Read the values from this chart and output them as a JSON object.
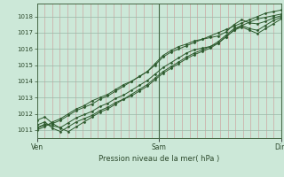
{
  "background_color": "#cce8d8",
  "plot_bg_color": "#cce8d8",
  "grid_color_v": "#cc8888",
  "grid_color_h": "#99b8a8",
  "line_color": "#2d5a2d",
  "ylim": [
    1010.5,
    1018.8
  ],
  "yticks": [
    1011,
    1012,
    1013,
    1014,
    1015,
    1016,
    1017,
    1018
  ],
  "xlabel": "Pression niveau de la mer( hPa )",
  "xtick_labels": [
    "Ven",
    "Sam",
    "Dim"
  ],
  "xtick_positions": [
    0,
    48,
    96
  ],
  "total_hours": 96,
  "series": [
    [
      1011.0,
      1011.2,
      1011.5,
      1011.7,
      1012.0,
      1012.3,
      1012.5,
      1012.8,
      1013.0,
      1013.2,
      1013.5,
      1013.8,
      1014.0,
      1014.3,
      1014.6,
      1015.0,
      1015.5,
      1015.8,
      1016.0,
      1016.2,
      1016.4,
      1016.6,
      1016.8,
      1017.0,
      1017.2,
      1017.4,
      1017.6,
      1017.8,
      1018.0,
      1018.2,
      1018.3,
      1018.4
    ],
    [
      1011.1,
      1011.3,
      1011.4,
      1011.6,
      1011.9,
      1012.2,
      1012.4,
      1012.6,
      1012.9,
      1013.1,
      1013.4,
      1013.7,
      1014.0,
      1014.3,
      1014.6,
      1015.1,
      1015.6,
      1015.9,
      1016.15,
      1016.3,
      1016.5,
      1016.6,
      1016.7,
      1016.8,
      1017.05,
      1017.5,
      1017.8,
      1017.6,
      1017.55,
      1017.7,
      1017.9,
      1018.05
    ],
    [
      1011.15,
      1011.35,
      1011.25,
      1011.15,
      1011.45,
      1011.75,
      1011.95,
      1012.15,
      1012.45,
      1012.65,
      1012.95,
      1013.15,
      1013.45,
      1013.75,
      1014.05,
      1014.45,
      1014.85,
      1015.15,
      1015.45,
      1015.75,
      1015.95,
      1016.05,
      1016.15,
      1016.35,
      1016.75,
      1017.15,
      1017.45,
      1017.65,
      1017.85,
      1017.95,
      1018.05,
      1018.15
    ],
    [
      1011.3,
      1011.5,
      1011.1,
      1010.9,
      1011.2,
      1011.5,
      1011.7,
      1011.9,
      1012.2,
      1012.4,
      1012.7,
      1012.9,
      1013.2,
      1013.5,
      1013.8,
      1014.2,
      1014.6,
      1014.9,
      1015.2,
      1015.5,
      1015.75,
      1015.95,
      1016.15,
      1016.45,
      1016.85,
      1017.25,
      1017.45,
      1017.25,
      1017.15,
      1017.45,
      1017.75,
      1017.95
    ],
    [
      1011.6,
      1011.8,
      1011.4,
      1011.1,
      1010.9,
      1011.2,
      1011.5,
      1011.8,
      1012.1,
      1012.3,
      1012.6,
      1012.9,
      1013.1,
      1013.4,
      1013.7,
      1014.1,
      1014.5,
      1014.8,
      1015.1,
      1015.4,
      1015.65,
      1015.85,
      1016.05,
      1016.35,
      1016.75,
      1017.15,
      1017.35,
      1017.15,
      1016.95,
      1017.25,
      1017.55,
      1017.85
    ]
  ]
}
